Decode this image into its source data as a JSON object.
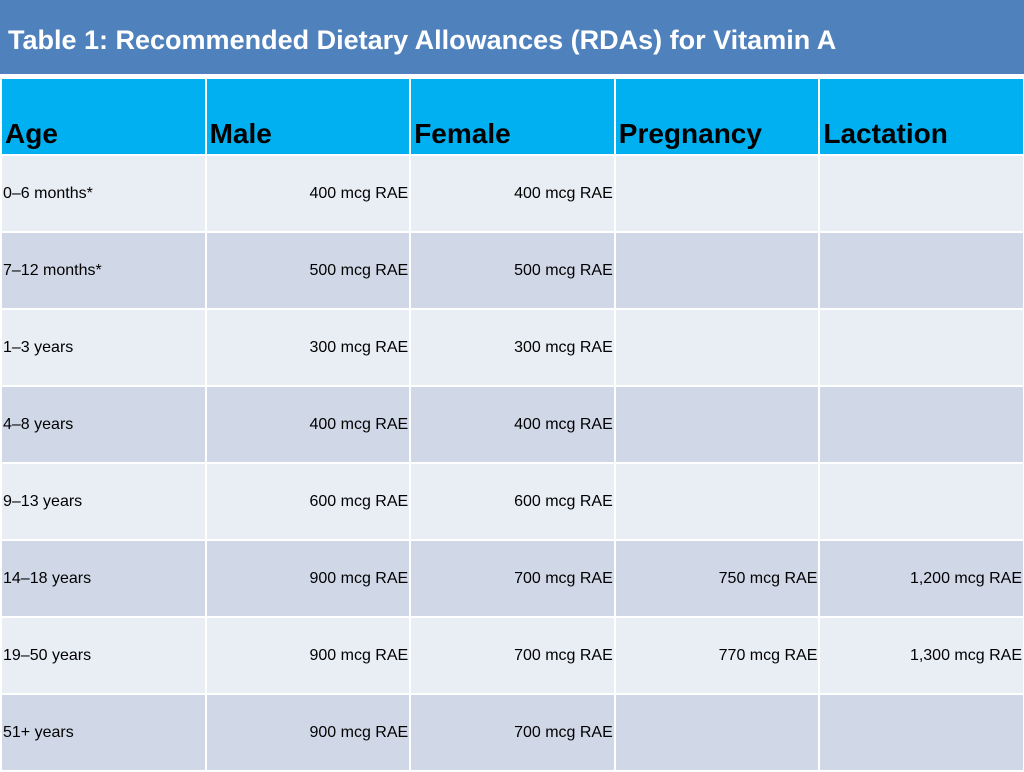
{
  "title": "Table 1: Recommended Dietary Allowances (RDAs) for Vitamin A",
  "colors": {
    "title_bar": "#4f81bd",
    "header": "#00b0f0",
    "row_light": "#e9edf4",
    "row_dark": "#d0d8e8"
  },
  "headers": [
    "Age",
    "Male",
    "Female",
    "Pregnancy",
    "Lactation"
  ],
  "rows": [
    [
      "0–6 months*",
      "400 mcg RAE",
      "400 mcg RAE",
      "",
      ""
    ],
    [
      "7–12 months*",
      "500 mcg RAE",
      "500 mcg RAE",
      "",
      ""
    ],
    [
      "1–3 years",
      "300 mcg RAE",
      "300 mcg RAE",
      "",
      ""
    ],
    [
      "4–8 years",
      "400 mcg RAE",
      "400 mcg RAE",
      "",
      ""
    ],
    [
      "9–13 years",
      "600 mcg RAE",
      "600 mcg RAE",
      "",
      ""
    ],
    [
      "14–18 years",
      "900 mcg RAE",
      "700 mcg RAE",
      "750 mcg RAE",
      "1,200 mcg RAE"
    ],
    [
      "19–50 years",
      "900 mcg RAE",
      "700 mcg RAE",
      "770 mcg RAE",
      "1,300 mcg RAE"
    ],
    [
      "51+ years",
      "900 mcg RAE",
      "700 mcg RAE",
      "",
      ""
    ]
  ]
}
